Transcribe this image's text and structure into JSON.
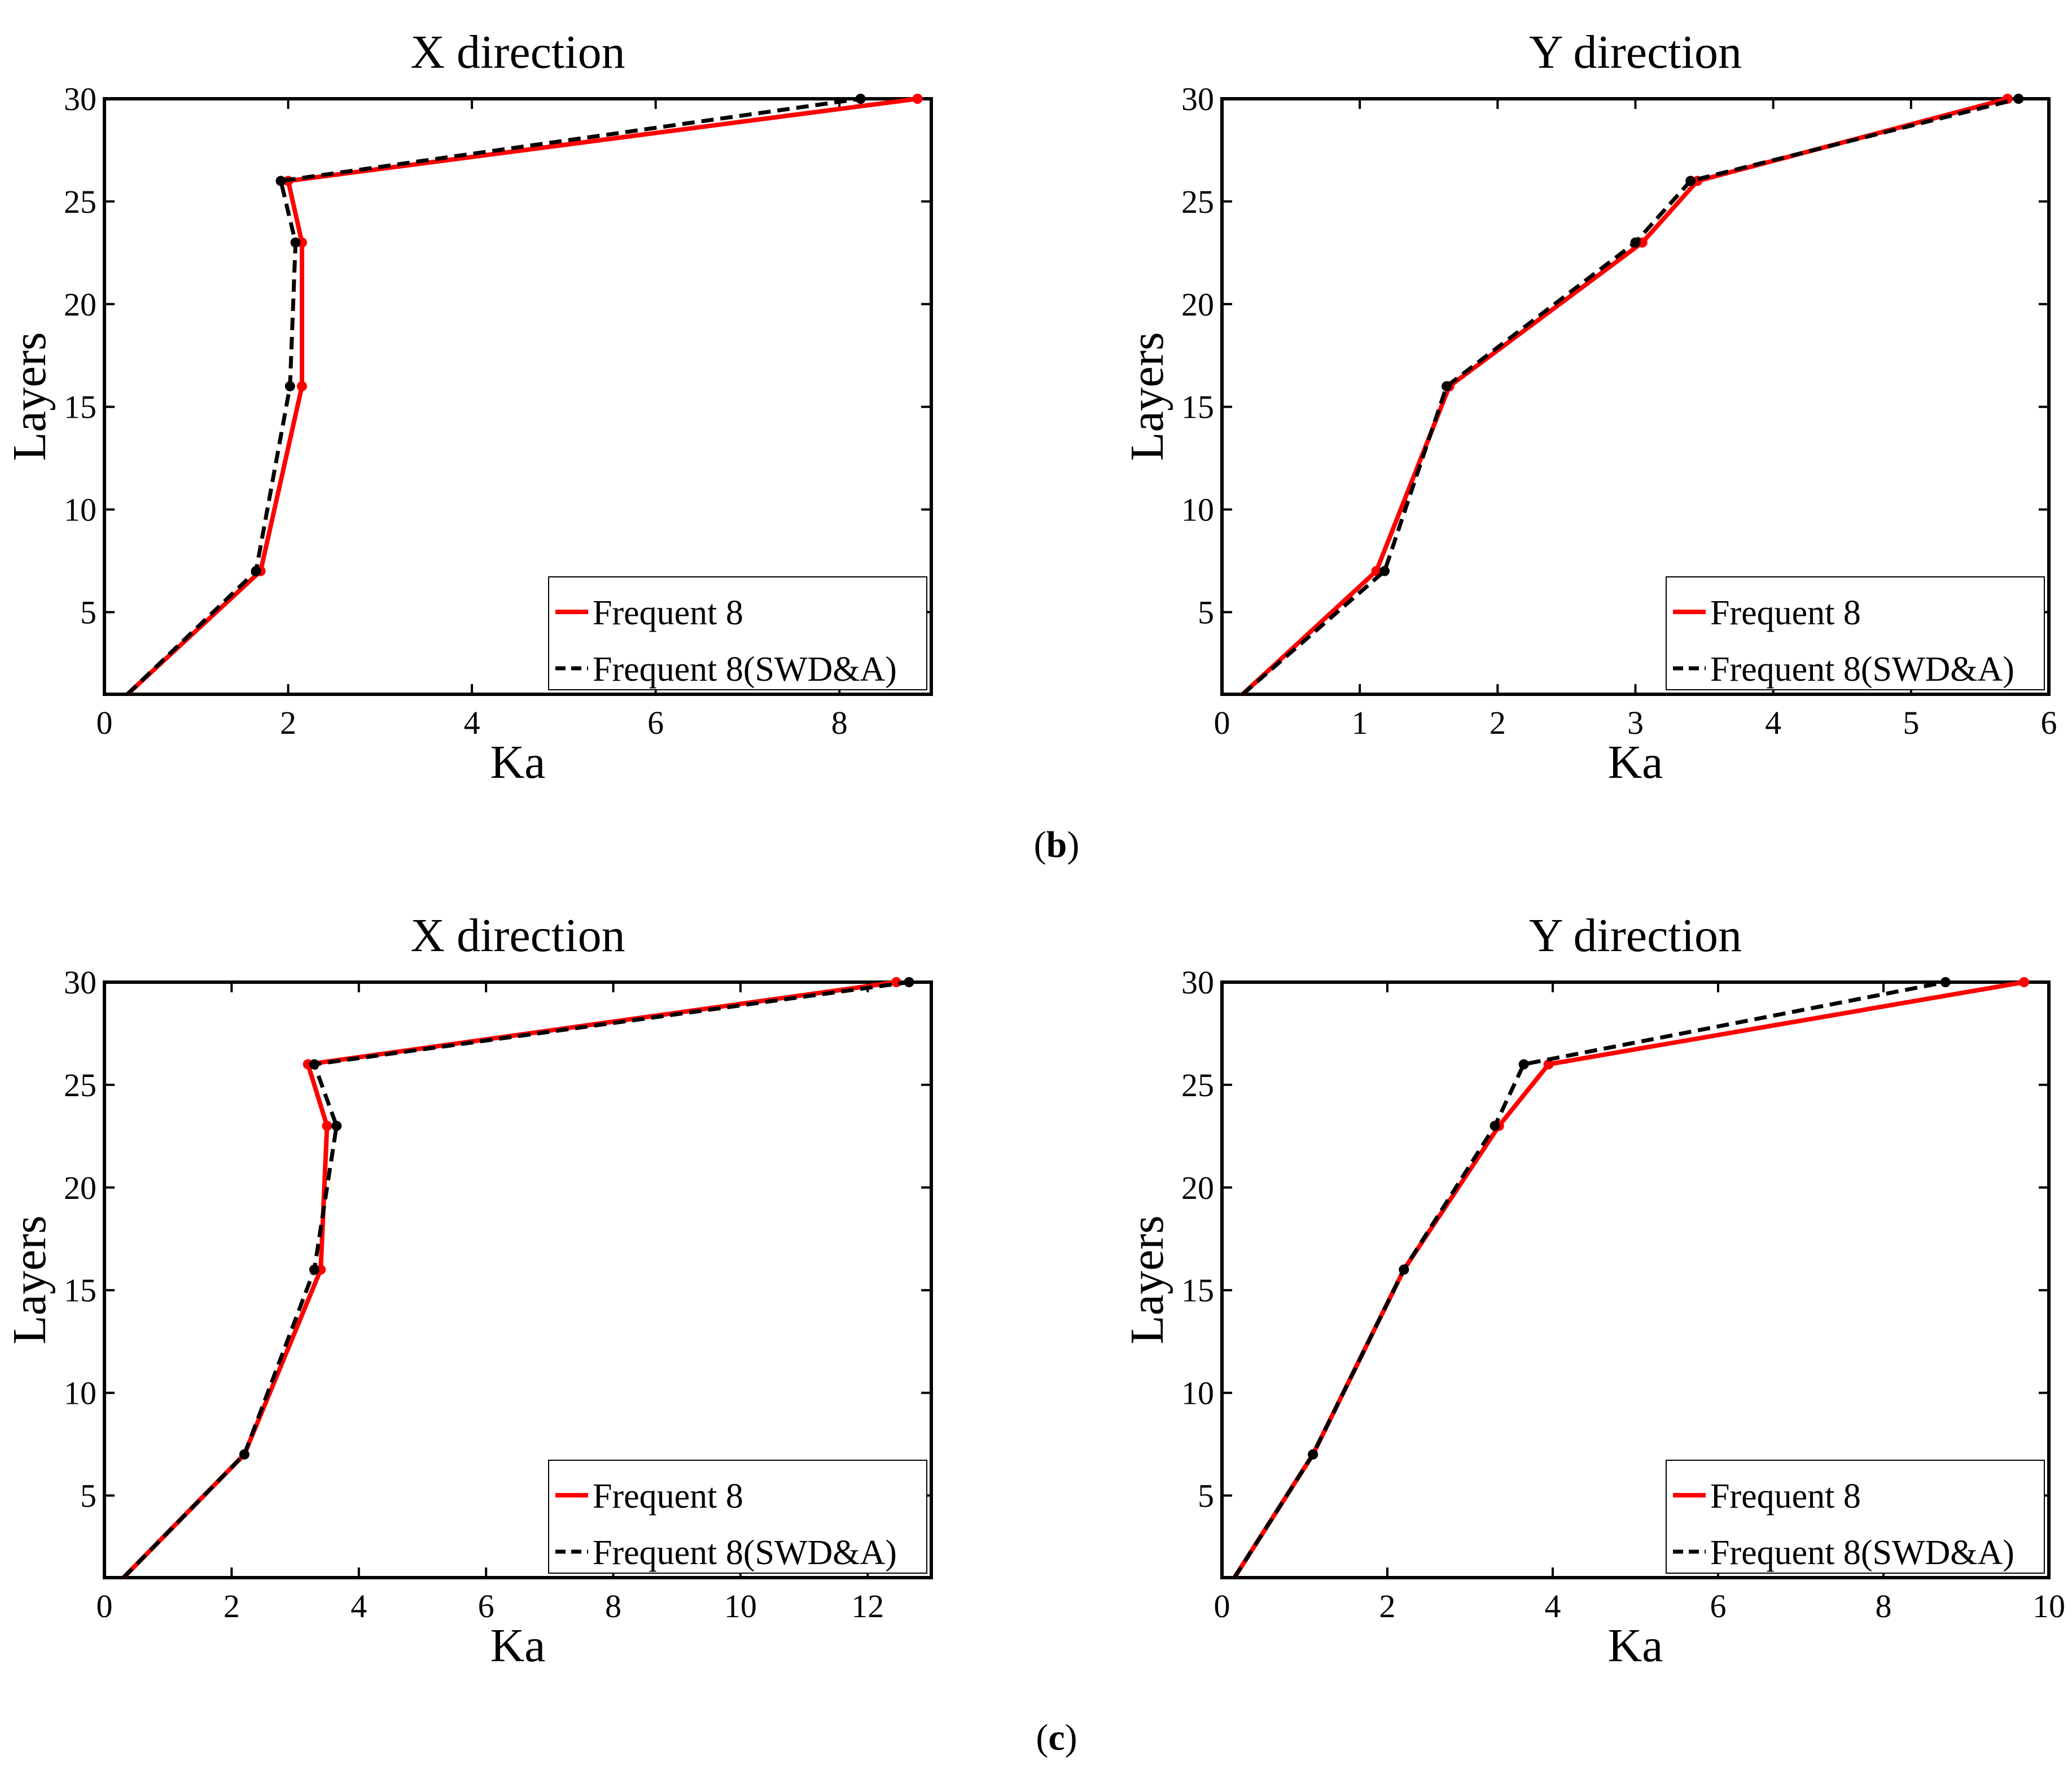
{
  "captions": [
    {
      "open": "(",
      "letter": "b",
      "close": ")"
    },
    {
      "open": "(",
      "letter": "c",
      "close": ")"
    }
  ],
  "colors": {
    "red": "#ff0000",
    "black": "#000000"
  },
  "chart_data": [
    {
      "type": "line",
      "title": "X direction",
      "xlabel": "Ka",
      "ylabel": "Layers",
      "xlim": [
        0,
        9
      ],
      "ylim": [
        1,
        30
      ],
      "xticks": [
        0,
        2,
        4,
        6,
        8
      ],
      "yticks": [
        5,
        10,
        15,
        20,
        25,
        30
      ],
      "legend_position": "bottom-right",
      "series": [
        {
          "name": "Frequent 8",
          "style": "solid",
          "color": "#ff0000",
          "x": [
            0.25,
            1.7,
            2.15,
            2.15,
            2.0,
            8.85
          ],
          "y": [
            1,
            7,
            16,
            23,
            26,
            30
          ]
        },
        {
          "name": "Frequent 8(SWD&A)",
          "style": "dashed",
          "color": "#000000",
          "x": [
            0.25,
            1.65,
            2.02,
            2.08,
            1.92,
            8.23
          ],
          "y": [
            1,
            7,
            16,
            23,
            26,
            30
          ]
        }
      ]
    },
    {
      "type": "line",
      "title": "Y direction",
      "xlabel": "Ka",
      "ylabel": "Layers",
      "xlim": [
        0,
        6
      ],
      "ylim": [
        1,
        30
      ],
      "xticks": [
        0,
        1,
        2,
        3,
        4,
        5,
        6
      ],
      "yticks": [
        5,
        10,
        15,
        20,
        25,
        30
      ],
      "legend_position": "bottom-right",
      "series": [
        {
          "name": "Frequent 8",
          "style": "solid",
          "color": "#ff0000",
          "x": [
            0.15,
            1.12,
            1.65,
            3.05,
            3.45,
            5.7
          ],
          "y": [
            1,
            7,
            16,
            23,
            26,
            30
          ]
        },
        {
          "name": "Frequent 8(SWD&A)",
          "style": "dashed",
          "color": "#000000",
          "x": [
            0.15,
            1.18,
            1.63,
            3.0,
            3.4,
            5.78
          ],
          "y": [
            1,
            7,
            16,
            23,
            26,
            30
          ]
        }
      ]
    },
    {
      "type": "line",
      "title": "X direction",
      "xlabel": "Ka",
      "ylabel": "Layers",
      "xlim": [
        0,
        13
      ],
      "ylim": [
        1,
        30
      ],
      "xticks": [
        0,
        2,
        4,
        6,
        8,
        10,
        12
      ],
      "yticks": [
        5,
        10,
        15,
        20,
        25,
        30
      ],
      "legend_position": "bottom-right",
      "series": [
        {
          "name": "Frequent 8",
          "style": "solid",
          "color": "#ff0000",
          "x": [
            0.3,
            2.2,
            3.4,
            3.5,
            3.2,
            12.45
          ],
          "y": [
            1,
            7,
            16,
            23,
            26,
            30
          ]
        },
        {
          "name": "Frequent 8(SWD&A)",
          "style": "dashed",
          "color": "#000000",
          "x": [
            0.3,
            2.2,
            3.3,
            3.65,
            3.3,
            12.65
          ],
          "y": [
            1,
            7,
            16,
            23,
            26,
            30
          ]
        }
      ]
    },
    {
      "type": "line",
      "title": "Y direction",
      "xlabel": "Ka",
      "ylabel": "Layers",
      "xlim": [
        0,
        10
      ],
      "ylim": [
        1,
        30
      ],
      "xticks": [
        0,
        2,
        4,
        6,
        8,
        10
      ],
      "yticks": [
        5,
        10,
        15,
        20,
        25,
        30
      ],
      "legend_position": "bottom-right",
      "series": [
        {
          "name": "Frequent 8",
          "style": "solid",
          "color": "#ff0000",
          "x": [
            0.15,
            1.1,
            2.2,
            3.35,
            3.95,
            9.7
          ],
          "y": [
            1,
            7,
            16,
            23,
            26,
            30
          ]
        },
        {
          "name": "Frequent 8(SWD&A)",
          "style": "dashed",
          "color": "#000000",
          "x": [
            0.15,
            1.1,
            2.2,
            3.3,
            3.65,
            8.75
          ],
          "y": [
            1,
            7,
            16,
            23,
            26,
            30
          ]
        }
      ]
    }
  ]
}
